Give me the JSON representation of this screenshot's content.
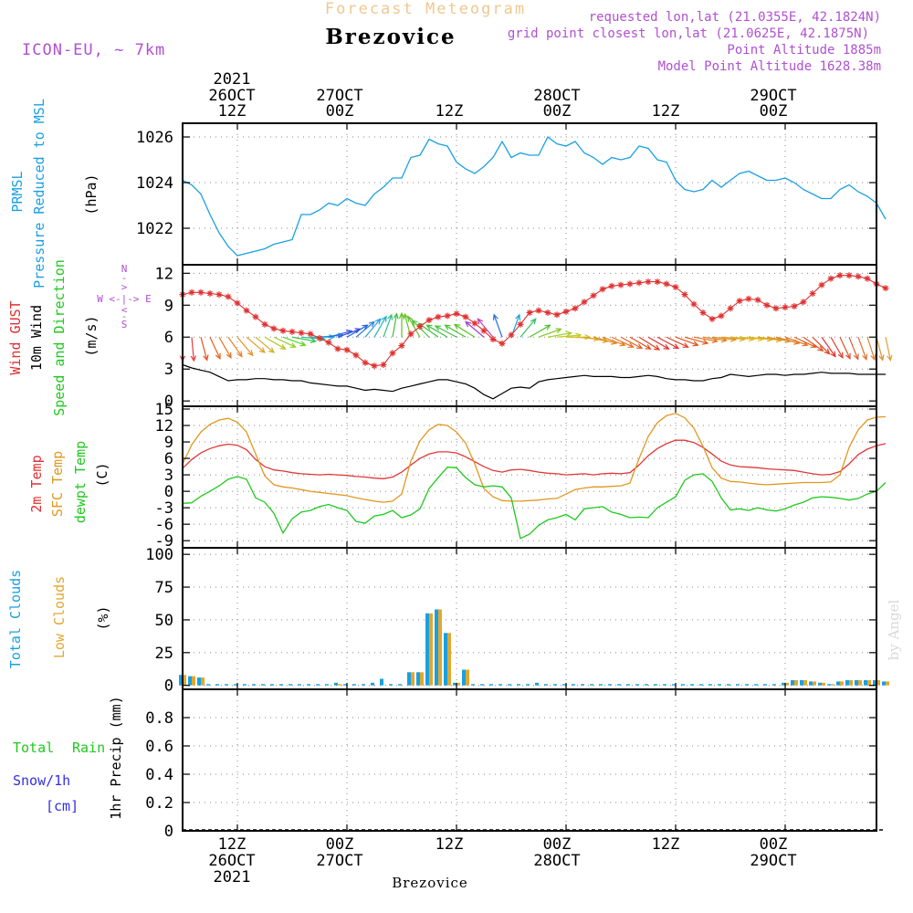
{
  "header": {
    "title": "Forecast Meteogram",
    "model": "ICON-EU, ~ 7km",
    "location": "Brezovice",
    "requested": "requested lon,lat (21.0355E, 42.1824N)",
    "grid_point": "grid point closest lon,lat (21.0625E, 42.1875N)",
    "point_altitude": "Point Altitude 1885m",
    "model_altitude": "Model Point Altitude 1628.38m"
  },
  "footer": {
    "location": "Brezovice",
    "credit": "by Angel"
  },
  "time_axis": {
    "year": "2021",
    "labels": [
      {
        "date": "26OCT",
        "hour": "12Z",
        "t": 6
      },
      {
        "date": "27OCT",
        "hour": "00Z",
        "t": 18
      },
      {
        "date": "",
        "hour": "12Z",
        "t": 30
      },
      {
        "date": "28OCT",
        "hour": "00Z",
        "t": 42
      },
      {
        "date": "",
        "hour": "12Z",
        "t": 54
      },
      {
        "date": "29OCT",
        "hour": "00Z",
        "t": 66
      }
    ],
    "t_range": [
      0,
      76
    ]
  },
  "panel_labels": {
    "pressure": [
      "PRMSL",
      "Pressure Reduced to MSL",
      "(hPa)"
    ],
    "wind": [
      "Wind GUST",
      "10m Wind",
      "Speed and Direction",
      "(m/s)"
    ],
    "compass": [
      "N",
      "-",
      ">",
      "W <-|-> E",
      "<",
      "-",
      "S"
    ],
    "temp": [
      "2m Temp",
      "SFC Temp",
      "dewpt Temp",
      "(C)"
    ],
    "clouds": [
      "Total Clouds",
      "Low Clouds",
      "(%)"
    ],
    "precip": [
      "Total",
      "Rain",
      "Snow/1h",
      "[cm]",
      "1hr Precip (mm)"
    ]
  },
  "colors": {
    "pressure": "#1aa0e0",
    "gust": "#e03030",
    "wind": "#000000",
    "temp2m": "#e03838",
    "sfc": "#e09820",
    "dewpt": "#20c820",
    "total_clouds": "#1aa0e0",
    "low_clouds": "#e0a830",
    "title": "#f0c890",
    "info": "#b050d0",
    "rain": "#20c820",
    "snow": "#3030e0"
  },
  "chart_data": [
    {
      "type": "line",
      "title": "PRMSL Pressure Reduced to MSL",
      "ylabel": "(hPa)",
      "ylim": [
        1020.4,
        1026.6
      ],
      "yticks": [
        1022,
        1024,
        1026
      ],
      "series": [
        {
          "name": "PRMSL",
          "values": [
            1024.1,
            1023.9,
            1023.5,
            1022.6,
            1021.8,
            1021.2,
            1020.8,
            1020.9,
            1021.0,
            1021.1,
            1021.3,
            1021.4,
            1021.5,
            1022.6,
            1022.6,
            1022.8,
            1023.1,
            1023.0,
            1023.3,
            1023.1,
            1023.0,
            1023.5,
            1023.8,
            1024.2,
            1024.2,
            1025.1,
            1025.2,
            1025.9,
            1025.7,
            1025.6,
            1024.9,
            1024.6,
            1024.4,
            1024.7,
            1025.1,
            1025.8,
            1025.1,
            1025.3,
            1025.2,
            1025.2,
            1026.0,
            1025.7,
            1025.6,
            1025.8,
            1025.3,
            1025.1,
            1024.8,
            1025.1,
            1025.0,
            1025.1,
            1025.6,
            1025.5,
            1025.0,
            1024.9,
            1024.1,
            1023.7,
            1023.6,
            1023.7,
            1024.1,
            1023.8,
            1024.1,
            1024.4,
            1024.5,
            1024.3,
            1024.1,
            1024.1,
            1024.2,
            1024.0,
            1023.7,
            1023.5,
            1023.3,
            1023.3,
            1023.7,
            1023.9,
            1023.6,
            1023.4,
            1023.1,
            1022.4
          ]
        }
      ]
    },
    {
      "type": "line",
      "title": "Wind GUST / 10m Wind Speed and Direction",
      "ylabel": "(m/s)",
      "ylim": [
        -0.5,
        12.8
      ],
      "yticks": [
        0,
        3,
        6,
        9,
        12
      ],
      "series": [
        {
          "name": "Wind GUST",
          "values": [
            10.0,
            10.2,
            10.2,
            10.1,
            10.0,
            9.8,
            9.2,
            8.5,
            7.9,
            7.2,
            6.8,
            6.6,
            6.5,
            6.4,
            6.3,
            5.9,
            5.5,
            4.9,
            4.8,
            4.3,
            3.6,
            3.3,
            3.4,
            4.5,
            5.2,
            6.3,
            7.0,
            7.6,
            7.9,
            8.0,
            8.2,
            7.9,
            7.3,
            6.6,
            5.8,
            5.4,
            6.2,
            7.2,
            8.3,
            8.5,
            8.3,
            8.1,
            8.4,
            8.7,
            9.3,
            9.9,
            10.5,
            10.8,
            10.9,
            11.0,
            11.1,
            11.2,
            11.2,
            11.0,
            10.7,
            10.0,
            9.1,
            8.3,
            7.7,
            8.0,
            8.7,
            9.4,
            9.6,
            9.5,
            9.0,
            8.7,
            8.8,
            8.9,
            9.3,
            10.1,
            10.9,
            11.5,
            11.8,
            11.8,
            11.7,
            11.5,
            11.0,
            10.6
          ]
        },
        {
          "name": "10m Wind",
          "values": [
            3.4,
            3.1,
            2.9,
            2.7,
            2.3,
            1.9,
            2.0,
            2.0,
            2.1,
            2.1,
            2.0,
            2.0,
            1.9,
            1.9,
            1.7,
            1.6,
            1.5,
            1.4,
            1.4,
            1.2,
            1.0,
            1.1,
            1.0,
            0.9,
            1.2,
            1.4,
            1.6,
            1.8,
            2.0,
            2.0,
            1.8,
            1.6,
            1.2,
            0.6,
            0.2,
            0.7,
            1.2,
            1.3,
            1.2,
            1.8,
            2.0,
            2.1,
            2.2,
            2.3,
            2.4,
            2.3,
            2.3,
            2.3,
            2.2,
            2.2,
            2.3,
            2.4,
            2.3,
            2.1,
            2.0,
            2.0,
            1.9,
            1.9,
            2.1,
            2.2,
            2.5,
            2.4,
            2.3,
            2.4,
            2.5,
            2.5,
            2.4,
            2.5,
            2.5,
            2.6,
            2.7,
            2.6,
            2.6,
            2.6,
            2.5,
            2.5,
            2.5,
            2.5
          ]
        }
      ],
      "wind_arrows": {
        "direction_to_deg": [
          180,
          175,
          165,
          155,
          150,
          145,
          140,
          130,
          130,
          120,
          115,
          110,
          100,
          95,
          90,
          85,
          75,
          70,
          60,
          50,
          40,
          30,
          20,
          10,
          0,
          -15,
          -30,
          -45,
          -55,
          -60,
          -62,
          -60,
          -58,
          -50,
          -40,
          -20,
          20,
          40,
          60,
          70,
          80,
          85,
          90,
          95,
          100,
          105,
          110,
          115,
          118,
          120,
          122,
          120,
          118,
          115,
          110,
          105,
          100,
          98,
          96,
          95,
          95,
          95,
          96,
          98,
          100,
          105,
          110,
          115,
          125,
          135,
          145,
          150,
          155,
          158,
          160,
          162,
          165,
          168
        ],
        "colors": [
          "#e03030",
          "#e83a40",
          "#e85020",
          "#e86018",
          "#e87020",
          "#e88020",
          "#e89020",
          "#e0a030",
          "#d0b028",
          "#b8c020",
          "#90d020",
          "#60d028",
          "#30c040",
          "#20c0a0",
          "#20b0d0",
          "#2090e0",
          "#3060e0",
          "#4040e0",
          "#2060e0",
          "#3080e0",
          "#20a0e0",
          "#20b0c0",
          "#30c080",
          "#40c040",
          "#60c020",
          "#60c020",
          "#60c020",
          "#50c030",
          "#40c040",
          "#40c040",
          "#40c040",
          "#50c030",
          "#60c020",
          "#a040d0",
          "#c040b0",
          "#2070e0",
          "#20a0d0",
          "#30c060",
          "#50c030",
          "#80c820",
          "#a0d020",
          "#c0d020",
          "#d0c020",
          "#e0b020",
          "#e0a020",
          "#e09020",
          "#e08020",
          "#e07020",
          "#e06020",
          "#e05020",
          "#e04020",
          "#e03030",
          "#e03030",
          "#e04020",
          "#e05020",
          "#e06020",
          "#e07020",
          "#e08020",
          "#e09020",
          "#e0a020",
          "#e0b020",
          "#e0c020",
          "#e0b020",
          "#e0a020",
          "#e09020",
          "#e08020",
          "#e07020",
          "#e06020",
          "#e05020",
          "#e04020",
          "#e03030",
          "#e04030",
          "#e05030",
          "#e06030",
          "#e07030",
          "#e08030",
          "#e09030",
          "#e0a030"
        ]
      }
    },
    {
      "type": "line",
      "title": "2m Temp / SFC Temp / dewpt Temp",
      "ylabel": "(C)",
      "ylim": [
        -10.3,
        15.5
      ],
      "yticks": [
        -9,
        -6,
        -3,
        0,
        3,
        6,
        9,
        12,
        15
      ],
      "series": [
        {
          "name": "2m Temp",
          "values": [
            4.2,
            5.8,
            7.0,
            7.8,
            8.3,
            8.6,
            8.4,
            7.6,
            5.8,
            4.5,
            3.9,
            3.7,
            3.4,
            3.2,
            3.1,
            3.0,
            3.1,
            3.0,
            2.9,
            2.7,
            2.6,
            2.4,
            2.3,
            2.6,
            3.5,
            4.8,
            6.0,
            6.8,
            7.2,
            7.2,
            7.0,
            6.3,
            5.4,
            4.5,
            3.8,
            3.5,
            3.9,
            4.0,
            3.8,
            3.5,
            3.3,
            3.2,
            3.0,
            3.1,
            3.2,
            3.0,
            3.2,
            3.3,
            3.2,
            3.4,
            4.8,
            6.5,
            7.8,
            8.7,
            9.3,
            9.3,
            8.9,
            8.0,
            6.8,
            5.5,
            4.8,
            4.5,
            4.4,
            4.3,
            4.1,
            4.0,
            3.9,
            3.8,
            3.5,
            3.2,
            3.0,
            3.1,
            3.6,
            5.0,
            6.7,
            7.7,
            8.3,
            8.7
          ]
        },
        {
          "name": "SFC Temp",
          "values": [
            5.0,
            8.5,
            10.8,
            12.2,
            13.0,
            13.3,
            12.6,
            10.8,
            6.8,
            2.8,
            1.2,
            0.8,
            0.6,
            0.3,
            0.0,
            -0.2,
            -0.4,
            -0.6,
            -0.8,
            -1.2,
            -1.5,
            -1.8,
            -2.0,
            -1.8,
            -0.5,
            5.5,
            9.2,
            11.2,
            12.2,
            12.0,
            10.8,
            8.8,
            5.0,
            0.5,
            -1.0,
            -1.7,
            -1.8,
            -1.8,
            -1.7,
            -1.6,
            -1.4,
            -1.3,
            -0.5,
            0.3,
            0.6,
            0.8,
            0.8,
            0.9,
            1.0,
            1.5,
            6.0,
            10.0,
            12.5,
            13.8,
            14.2,
            13.4,
            11.5,
            8.2,
            4.3,
            2.4,
            1.8,
            1.7,
            1.5,
            1.3,
            1.2,
            1.3,
            1.4,
            1.5,
            1.6,
            1.6,
            1.6,
            1.7,
            3.0,
            8.0,
            11.2,
            13.0,
            13.5,
            13.6
          ]
        },
        {
          "name": "dewpt Temp",
          "values": [
            -2.2,
            -2.1,
            -0.9,
            0.0,
            1.0,
            2.2,
            2.7,
            2.2,
            -1.2,
            -2.0,
            -4.0,
            -7.6,
            -5.0,
            -3.8,
            -3.5,
            -2.8,
            -2.4,
            -3.0,
            -3.5,
            -5.5,
            -5.8,
            -4.5,
            -4.2,
            -3.5,
            -4.8,
            -4.3,
            -3.2,
            0.5,
            2.5,
            4.4,
            4.3,
            2.5,
            1.2,
            0.8,
            1.0,
            0.8,
            -1.2,
            -8.6,
            -7.8,
            -6.2,
            -5.2,
            -4.8,
            -4.2,
            -5.2,
            -3.2,
            -3.0,
            -2.8,
            -3.8,
            -4.2,
            -4.8,
            -4.7,
            -4.8,
            -3.0,
            -2.0,
            -1.0,
            2.0,
            3.0,
            3.2,
            1.8,
            -1.2,
            -3.4,
            -3.2,
            -3.5,
            -3.0,
            -3.4,
            -3.6,
            -3.2,
            -2.5,
            -2.0,
            -1.2,
            -1.0,
            -1.1,
            -1.3,
            -1.6,
            -1.3,
            -0.5,
            0.0,
            1.6
          ]
        }
      ]
    },
    {
      "type": "bar",
      "title": "Total Clouds / Low Clouds",
      "ylabel": "(%)",
      "ylim": [
        -3,
        105
      ],
      "yticks": [
        0,
        25,
        50,
        75,
        100
      ],
      "series": [
        {
          "name": "Total Clouds",
          "values": [
            8,
            7,
            6,
            1,
            1,
            1,
            1,
            1,
            1,
            1,
            1,
            1,
            1,
            1,
            1,
            1,
            1,
            2,
            1,
            1,
            1,
            2,
            5,
            1,
            1,
            10,
            10,
            55,
            58,
            40,
            2,
            12,
            1,
            1,
            1,
            1,
            1,
            1,
            1,
            2,
            1,
            1,
            1,
            1,
            1,
            1,
            1,
            1,
            1,
            1,
            1,
            1,
            1,
            1,
            1,
            1,
            1,
            1,
            1,
            1,
            1,
            1,
            1,
            1,
            1,
            1,
            2,
            4,
            4,
            3,
            2,
            1,
            3,
            4,
            4,
            4,
            4,
            3
          ]
        },
        {
          "name": "Low Clouds",
          "values": [
            8,
            7,
            6,
            0,
            0,
            0,
            0,
            0,
            0,
            0,
            0,
            0,
            0,
            0,
            0,
            0,
            0,
            1,
            0,
            0,
            0,
            0,
            0,
            0,
            0,
            10,
            10,
            55,
            58,
            40,
            2,
            12,
            0,
            0,
            0,
            0,
            0,
            0,
            0,
            0,
            0,
            0,
            0,
            0,
            0,
            0,
            0,
            0,
            0,
            0,
            0,
            0,
            0,
            0,
            0,
            0,
            0,
            0,
            0,
            0,
            0,
            0,
            0,
            0,
            0,
            0,
            2,
            4,
            4,
            3,
            2,
            1,
            3,
            4,
            4,
            4,
            4,
            3
          ]
        }
      ]
    },
    {
      "type": "line",
      "title": "1hr Precip",
      "ylabel": "1hr Precip (mm)",
      "ylim": [
        0,
        1.0
      ],
      "yticks": [
        0,
        0.2,
        0.4,
        0.6,
        0.8
      ],
      "ytick_labels": [
        "0",
        "0.2",
        "0.4",
        "0.6",
        "0.8"
      ],
      "series": [
        {
          "name": "Total Rain",
          "values": [
            0,
            0,
            0,
            0,
            0,
            0,
            0,
            0,
            0,
            0,
            0,
            0,
            0,
            0,
            0,
            0,
            0,
            0,
            0,
            0,
            0,
            0,
            0,
            0,
            0,
            0,
            0,
            0,
            0,
            0,
            0,
            0,
            0,
            0,
            0,
            0,
            0,
            0,
            0,
            0,
            0,
            0,
            0,
            0,
            0,
            0,
            0,
            0,
            0,
            0,
            0,
            0,
            0,
            0,
            0,
            0,
            0,
            0,
            0,
            0,
            0,
            0,
            0,
            0,
            0,
            0,
            0,
            0,
            0,
            0,
            0,
            0,
            0,
            0,
            0,
            0,
            0,
            0
          ]
        }
      ]
    }
  ]
}
